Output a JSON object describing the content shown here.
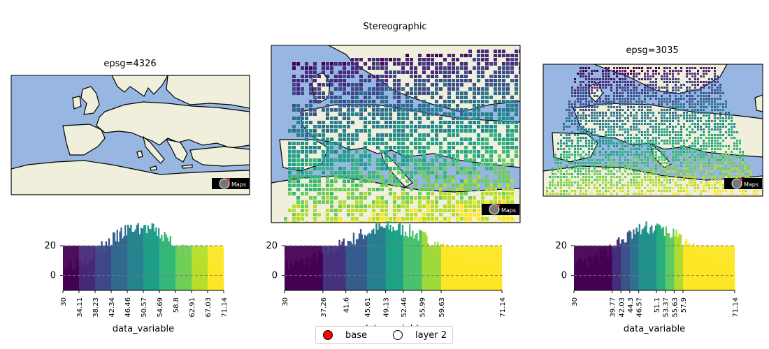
{
  "chart_data": [
    {
      "type": "map",
      "title": "epsg=4326",
      "projection": "epsg=4326",
      "ocean_color": "#97b6e1",
      "land_color": "#efefdb",
      "logo_text": "Maps",
      "data_layer": false
    },
    {
      "type": "map",
      "title": "Stereographic",
      "projection": "Stereographic",
      "ocean_color": "#97b6e1",
      "land_color": "#efefdb",
      "logo_text": "Maps",
      "data_layer": true,
      "colormap": "viridis",
      "value_range": [
        30,
        71.14
      ]
    },
    {
      "type": "map",
      "title": "epsg=3035",
      "projection": "epsg=3035",
      "ocean_color": "#97b6e1",
      "land_color": "#efefdb",
      "logo_text": "Maps",
      "data_layer": true,
      "colormap": "viridis",
      "value_range": [
        30,
        71.14
      ]
    },
    {
      "type": "bar",
      "subtype": "histogram-colorbar",
      "xlabel": "data_variable",
      "xlim": [
        30,
        71.14
      ],
      "ylim": [
        -10,
        35
      ],
      "y_ticks": [
        "0",
        "20"
      ],
      "reference_lines": [
        0,
        20
      ],
      "bins": [
        30,
        34.11,
        38.23,
        42.34,
        46.46,
        50.57,
        54.69,
        58.8,
        62.91,
        67.03,
        71.14
      ],
      "x_tick_labels": [
        "30",
        "34.11",
        "38.23",
        "42.34",
        "46.46",
        "50.57",
        "54.69",
        "58.8",
        "62.91",
        "67.03",
        "71.14"
      ],
      "colors": [
        "#440154",
        "#482878",
        "#3e4989",
        "#31688e",
        "#26828e",
        "#1f9e89",
        "#35b779",
        "#6ece58",
        "#b5de2b",
        "#fde725"
      ]
    },
    {
      "type": "bar",
      "subtype": "histogram-colorbar",
      "xlabel": "data_variable",
      "xlim": [
        30,
        71.14
      ],
      "ylim": [
        -10,
        35
      ],
      "y_ticks": [
        "0",
        "20"
      ],
      "reference_lines": [
        0,
        20
      ],
      "bins": [
        30,
        37.26,
        41.6,
        45.61,
        49.13,
        52.46,
        55.99,
        59.63,
        71.14
      ],
      "x_tick_labels": [
        "30",
        "37.26",
        "41.6",
        "45.61",
        "49.13",
        "52.46",
        "55.99",
        "59.63",
        "71.14"
      ],
      "colors": [
        "#440154",
        "#46327e",
        "#365c8d",
        "#277f8e",
        "#1fa187",
        "#4ac16d",
        "#a0da39",
        "#fde725"
      ]
    },
    {
      "type": "bar",
      "subtype": "histogram-colorbar",
      "xlabel": "data_variable",
      "xlim": [
        30,
        71.14
      ],
      "ylim": [
        -10,
        35
      ],
      "y_ticks": [
        "0",
        "20"
      ],
      "reference_lines": [
        0,
        20
      ],
      "bins": [
        30,
        39.77,
        42.03,
        44.3,
        46.57,
        51.1,
        53.37,
        55.63,
        57.9,
        71.14
      ],
      "x_tick_labels": [
        "30",
        "39.77",
        "42.03",
        "44.3",
        "46.57",
        "51.1",
        "53.37",
        "55.63",
        "57.9",
        "71.14"
      ],
      "colors": [
        "#440154",
        "#472d7b",
        "#3b528b",
        "#2c728e",
        "#21918c",
        "#28ae80",
        "#5ec962",
        "#addc30",
        "#fde725"
      ]
    }
  ],
  "legend": {
    "items": [
      {
        "label": "base",
        "color": "#ff0000"
      },
      {
        "label": "layer 2",
        "color": "#ffffff"
      }
    ]
  }
}
